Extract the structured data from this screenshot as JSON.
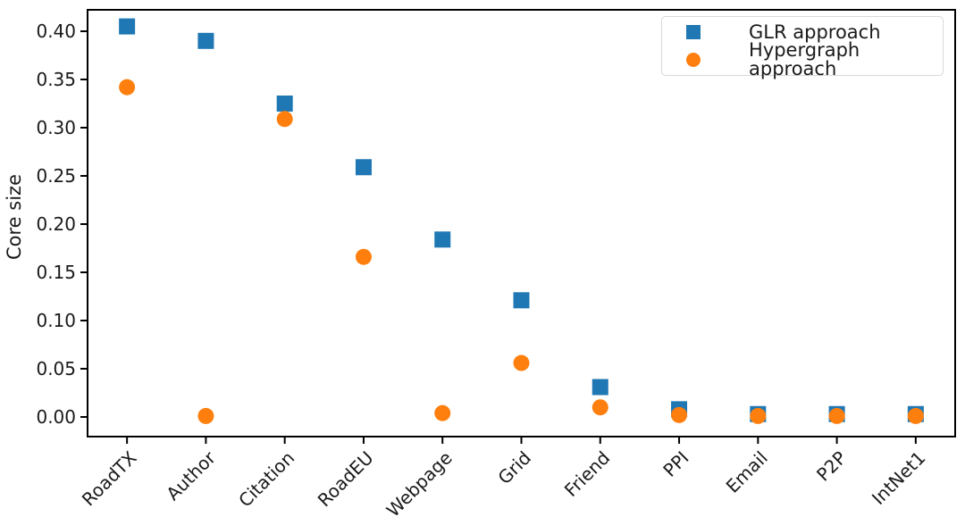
{
  "figure": {
    "ylabel": "Core size",
    "background": "#ffffff",
    "axis_color": "#000000",
    "text_color": "#1a1a1a"
  },
  "legend": {
    "position": "upper right",
    "items": [
      {
        "label": "GLR approach",
        "marker": "square-icon",
        "color": "#1f77b4"
      },
      {
        "label": "Hypergraph approach",
        "marker": "circle-icon",
        "color": "#ff7f0e"
      }
    ]
  },
  "chart_data": {
    "type": "scatter",
    "title": "",
    "xlabel": "",
    "ylabel": "Core size",
    "grid": false,
    "legend_position": "upper right",
    "categories": [
      "RoadTX",
      "Author",
      "Citation",
      "RoadEU",
      "Webpage",
      "Grid",
      "Friend",
      "PPI",
      "Email",
      "P2P",
      "IntNet1"
    ],
    "xticklabel_rotation": 45,
    "yticks": [
      0.0,
      0.05,
      0.1,
      0.15,
      0.2,
      0.25,
      0.3,
      0.35,
      0.4
    ],
    "ylim": [
      -0.02,
      0.422
    ],
    "series": [
      {
        "name": "GLR approach",
        "marker": "square",
        "color": "#1f77b4",
        "values": [
          0.405,
          0.39,
          0.325,
          0.259,
          0.184,
          0.121,
          0.031,
          0.008,
          0.003,
          0.003,
          0.003
        ]
      },
      {
        "name": "Hypergraph approach",
        "marker": "circle",
        "color": "#ff7f0e",
        "values": [
          0.342,
          0.001,
          0.309,
          0.166,
          0.004,
          0.056,
          0.01,
          0.002,
          0.001,
          0.001,
          0.001
        ]
      }
    ]
  }
}
